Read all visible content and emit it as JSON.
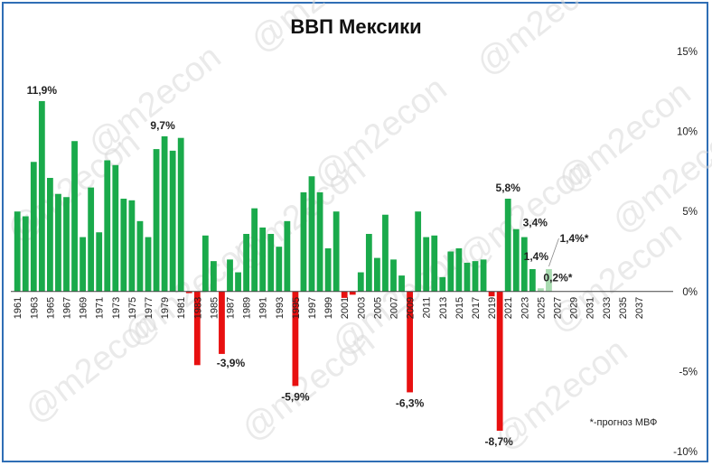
{
  "chart_data": {
    "type": "bar",
    "title": "ВВП Мексики",
    "xlabel": "",
    "ylabel": "",
    "ylim": [
      -10,
      15
    ],
    "y_ticks": [
      15,
      10,
      5,
      0,
      -5,
      -10
    ],
    "y_tick_labels": [
      "15%",
      "10%",
      "5%",
      "0%",
      "-5%",
      "-10%"
    ],
    "x_tick_labels": [
      "1961",
      "1963",
      "1965",
      "1967",
      "1969",
      "1971",
      "1973",
      "1975",
      "1977",
      "1979",
      "1981",
      "1983",
      "1985",
      "1987",
      "1989",
      "1991",
      "1993",
      "1995",
      "1997",
      "1999",
      "2001",
      "2003",
      "2005",
      "2007",
      "2009",
      "2011",
      "2013",
      "2015",
      "2017",
      "2019",
      "2021",
      "2023",
      "2025",
      "2027",
      "2029",
      "2031",
      "2033",
      "2035",
      "2037"
    ],
    "series": [
      {
        "name": "ВВП",
        "years": [
          1961,
          1962,
          1963,
          1964,
          1965,
          1966,
          1967,
          1968,
          1969,
          1970,
          1971,
          1972,
          1973,
          1974,
          1975,
          1976,
          1977,
          1978,
          1979,
          1980,
          1981,
          1982,
          1983,
          1984,
          1985,
          1986,
          1987,
          1988,
          1989,
          1990,
          1991,
          1992,
          1993,
          1994,
          1995,
          1996,
          1997,
          1998,
          1999,
          2000,
          2001,
          2002,
          2003,
          2004,
          2005,
          2006,
          2007,
          2008,
          2009,
          2010,
          2011,
          2012,
          2013,
          2014,
          2015,
          2016,
          2017,
          2018,
          2019,
          2020,
          2021,
          2022,
          2023,
          2024,
          2025,
          2026
        ],
        "values": [
          5.0,
          4.7,
          8.1,
          11.9,
          7.1,
          6.1,
          5.9,
          9.4,
          3.4,
          6.5,
          3.7,
          8.2,
          7.9,
          5.8,
          5.7,
          4.4,
          3.4,
          8.9,
          9.7,
          8.8,
          9.6,
          -0.1,
          -4.6,
          3.5,
          1.9,
          -3.9,
          2.0,
          1.2,
          3.6,
          5.2,
          4.0,
          3.6,
          2.8,
          4.4,
          -5.9,
          6.2,
          7.2,
          6.2,
          2.7,
          5.0,
          -0.4,
          -0.2,
          1.2,
          3.6,
          2.1,
          4.8,
          2.0,
          1.0,
          -6.3,
          5.0,
          3.4,
          3.5,
          0.9,
          2.5,
          2.7,
          1.8,
          1.9,
          2.0,
          -0.3,
          -8.7,
          5.8,
          3.9,
          3.4,
          1.4,
          0.2,
          1.4
        ],
        "forecast_from": 2025
      }
    ],
    "annotations": [
      {
        "year": 1964,
        "text": "11,9%"
      },
      {
        "year": 1979,
        "text": "9,7%"
      },
      {
        "year": 1986,
        "text": "-3,9%"
      },
      {
        "year": 1995,
        "text": "-5,9%"
      },
      {
        "year": 2009,
        "text": "-6,3%"
      },
      {
        "year": 2020,
        "text": "-8,7%"
      },
      {
        "year": 2021,
        "text": "5,8%"
      },
      {
        "year": 2023,
        "text": "3,4%"
      },
      {
        "year": 2024,
        "text": "1,4%"
      },
      {
        "year": 2025,
        "text": "0,2%*"
      },
      {
        "year": 2026,
        "text": "1,4%*"
      }
    ],
    "note": "*-прогноз МВФ",
    "watermark": "@m2econ",
    "colors": {
      "positive": "#1aaa4b",
      "negative": "#e81010",
      "forecast": "#a8dbb0",
      "frame": "#2f6eb5",
      "axis": "#444444"
    }
  }
}
